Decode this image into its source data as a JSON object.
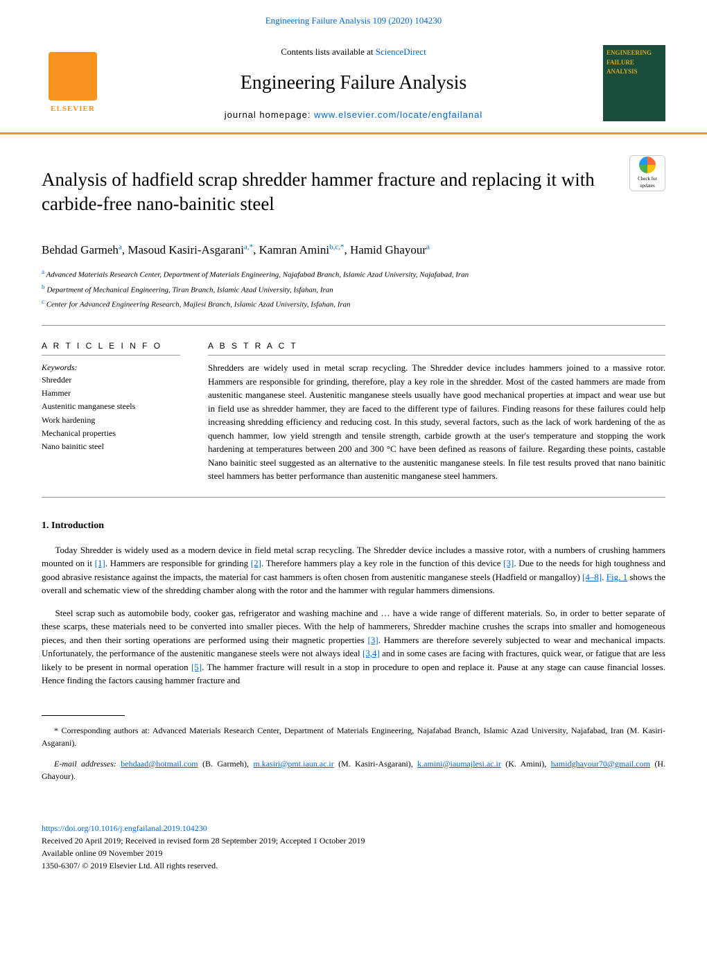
{
  "header": {
    "citation": "Engineering Failure Analysis 109 (2020) 104230",
    "contents_prefix": "Contents lists available at ",
    "contents_link": "ScienceDirect",
    "journal_name": "Engineering Failure Analysis",
    "homepage_prefix": "journal homepage: ",
    "homepage_link": "www.elsevier.com/locate/engfailanal",
    "publisher": "ELSEVIER",
    "cover_label": "ENGINEERING FAILURE ANALYSIS"
  },
  "article": {
    "title": "Analysis of hadfield scrap shredder hammer fracture and replacing it with carbide-free nano-bainitic steel",
    "check_updates": "Check for updates",
    "authors_html": "Behdad Garmeh<sup>a</sup>, Masoud Kasiri-Asgarani<sup>a,*</sup>, Kamran Amini<sup>b,c,*</sup>, Hamid Ghayour<sup>a</sup>",
    "affiliations": [
      {
        "sup": "a",
        "text": "Advanced Materials Research Center, Department of Materials Engineering, Najafabad Branch, Islamic Azad University, Najafabad, Iran"
      },
      {
        "sup": "b",
        "text": "Department of Mechanical Engineering, Tiran Branch, Islamic Azad University, Isfahan, Iran"
      },
      {
        "sup": "c",
        "text": "Center for Advanced Engineering Research, Majlesi Branch, Islamic Azad University, Isfahan, Iran"
      }
    ]
  },
  "info": {
    "heading": "A R T I C L E  I N F O",
    "keywords_label": "Keywords:",
    "keywords": [
      "Shredder",
      "Hammer",
      "Austenitic manganese steels",
      "Work hardening",
      "Mechanical properties",
      "Nano bainitic steel"
    ]
  },
  "abstract": {
    "heading": "A B S T R A C T",
    "text": "Shredders are widely used in metal scrap recycling. The Shredder device includes hammers joined to a massive rotor. Hammers are responsible for grinding, therefore, play a key role in the shredder. Most of the casted hammers are made from austenitic manganese steel. Austenitic manganese steels usually have good mechanical properties at impact and wear use but in field use as shredder hammer, they are faced to the different type of failures. Finding reasons for these failures could help increasing shredding efficiency and reducing cost. In this study, several factors, such as the lack of work hardening of the as quench hammer, low yield strength and tensile strength, carbide growth at the user's temperature and stopping the work hardening at temperatures between 200 and 300 °C have been defined as reasons of failure. Regarding these points, castable Nano bainitic steel suggested as an alternative to the austenitic manganese steels. In file test results proved that nano bainitic steel hammers has better performance than austenitic manganese steel hammers."
  },
  "intro": {
    "heading": "1. Introduction",
    "p1": "Today Shredder is widely used as a modern device in field metal scrap recycling. The Shredder device includes a massive rotor, with a numbers of crushing hammers mounted on it [1]. Hammers are responsible for grinding [2]. Therefore hammers play a key role in the function of this device [3]. Due to the needs for high toughness and good abrasive resistance against the impacts, the material for cast hammers is often chosen from austenitic manganese steels (Hadfield or mangalloy) [4–8]. Fig. 1 shows the overall and schematic view of the shredding chamber along with the rotor and the hammer with regular hammers dimensions.",
    "p2": "Steel scrap such as automobile body, cooker gas, refrigerator and washing machine and … have a wide range of different materials. So, in order to better separate of these scarps, these materials need to be converted into smaller pieces. With the help of hammerers, Shredder machine crushes the scraps into smaller and homogeneous pieces, and then their sorting operations are performed using their magnetic properties [3]. Hammers are therefore severely subjected to wear and mechanical impacts. Unfortunately, the performance of the austenitic manganese steels were not always ideal [3,4] and in some cases are facing with fractures, quick wear, or fatigue that are less likely to be present in normal operation [5]. The hammer fracture will result in a stop in procedure to open and replace it. Pause at any stage can cause financial losses. Hence finding the factors causing hammer fracture and"
  },
  "footnotes": {
    "corresponding": "* Corresponding authors at: Advanced Materials Research Center, Department of Materials Engineering, Najafabad Branch, Islamic Azad University, Najafabad, Iran (M. Kasiri-Asgarani).",
    "emails_label": "E-mail addresses: ",
    "emails": [
      {
        "email": "behdaad@hotmail.com",
        "name": "(B. Garmeh), "
      },
      {
        "email": "m.kasiri@pmt.iaun.ac.ir",
        "name": "(M. Kasiri-Asgarani), "
      },
      {
        "email": "k.amini@iaumajlesi.ac.ir",
        "name": "(K. Amini), "
      },
      {
        "email": "hamidghayour70@gmail.com",
        "name": "(H. Ghayour)."
      }
    ]
  },
  "footer": {
    "doi": "https://doi.org/10.1016/j.engfailanal.2019.104230",
    "received": "Received 20 April 2019; Received in revised form 28 September 2019; Accepted 1 October 2019",
    "available": "Available online 09 November 2019",
    "copyright": "1350-6307/ © 2019 Elsevier Ltd. All rights reserved."
  },
  "colors": {
    "link": "#0066cc",
    "accent": "#f7931e",
    "cover_bg": "#1a4d3a",
    "cover_title": "#d4a627"
  }
}
